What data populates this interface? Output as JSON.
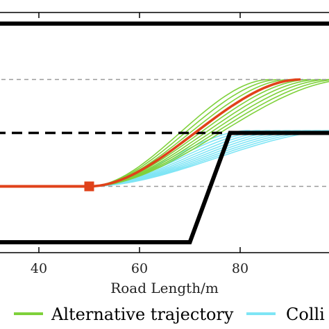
{
  "chart_data": {
    "type": "line",
    "title": "",
    "xlabel": "Road Length/m",
    "ylabel": "",
    "xlim": [
      28,
      99
    ],
    "ylim": [
      -1,
      10
    ],
    "x_ticks": [
      40,
      60,
      80
    ],
    "grid": false,
    "legend": {
      "placement": "bottom",
      "entries": [
        {
          "label": "Alternative trajectory",
          "color": "#7fd13b"
        },
        {
          "label": "Colli",
          "color": "#7fe5f5"
        }
      ]
    },
    "road": {
      "upper_boundary_y": 9.0,
      "lower_boundary": [
        [
          28,
          0
        ],
        [
          70,
          0
        ],
        [
          78,
          4.5
        ],
        [
          99,
          4.5
        ]
      ],
      "center_line_y": 4.5,
      "lane_center_lines_y": [
        6.7,
        2.3
      ]
    },
    "ego_trajectory": {
      "color": "#e0421a",
      "start": 50,
      "end": 92,
      "points": [
        [
          28,
          2.3
        ],
        [
          50,
          2.3
        ]
      ]
    },
    "alternative_trajectories": {
      "color": "#7fd13b",
      "start_x": 50,
      "start_y": 2.3,
      "end_y": 6.7,
      "ends_x": [
        86,
        88,
        90,
        92,
        94,
        96,
        98,
        100,
        102
      ]
    },
    "colliding_trajectories": {
      "color": "#7fe5f5",
      "start_x": 50,
      "start_y": 2.3,
      "end_y": 4.6,
      "ends_x": [
        82,
        84,
        86,
        88,
        90,
        92,
        94,
        96,
        98,
        100
      ]
    },
    "selected_trajectory_end_x": 92
  }
}
